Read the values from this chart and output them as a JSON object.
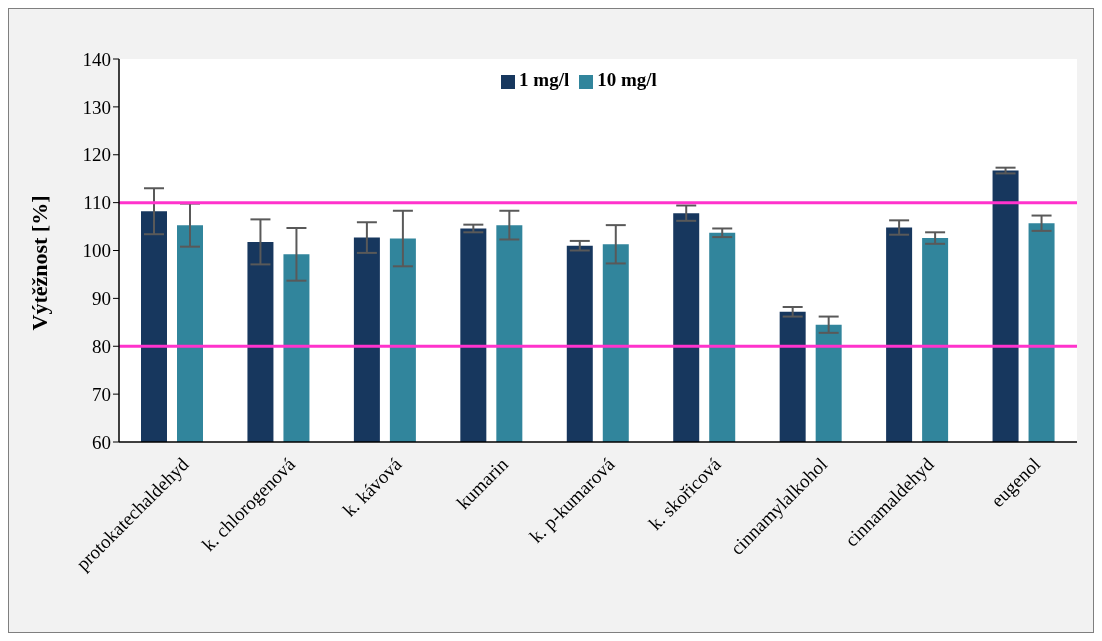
{
  "chart_data": {
    "type": "bar",
    "ylabel": "Výtěžnost [%]",
    "categories": [
      "protokatechaldehyd",
      "k. chlorogenová",
      "k. kávová",
      "kumarin",
      "k. p-kumarová",
      "k. skořicová",
      "cinnamylalkohol",
      "cinnamaldehyd",
      "eugenol"
    ],
    "series": [
      {
        "name": "1 mg/l",
        "color": "#17375e",
        "values": [
          108.2,
          101.8,
          102.7,
          104.6,
          101.0,
          107.8,
          87.2,
          104.8,
          116.7
        ],
        "errors": [
          4.8,
          4.7,
          3.2,
          0.8,
          1.0,
          1.6,
          1.0,
          1.5,
          0.6
        ]
      },
      {
        "name": "10 mg/l",
        "color": "#31859c",
        "values": [
          105.3,
          99.2,
          102.5,
          105.3,
          101.3,
          103.7,
          84.5,
          102.6,
          105.7
        ],
        "errors": [
          4.5,
          5.5,
          5.8,
          3.0,
          4.0,
          0.9,
          1.7,
          1.2,
          1.6
        ]
      }
    ],
    "ylim": [
      60,
      140
    ],
    "yticks": [
      60,
      70,
      80,
      90,
      100,
      110,
      120,
      130,
      140
    ],
    "grid": false,
    "legend": "top",
    "ref_lines": [
      {
        "axis": "y",
        "value": 110,
        "color": "#ff33cc"
      },
      {
        "axis": "y",
        "value": 80,
        "color": "#ff33cc"
      }
    ]
  }
}
